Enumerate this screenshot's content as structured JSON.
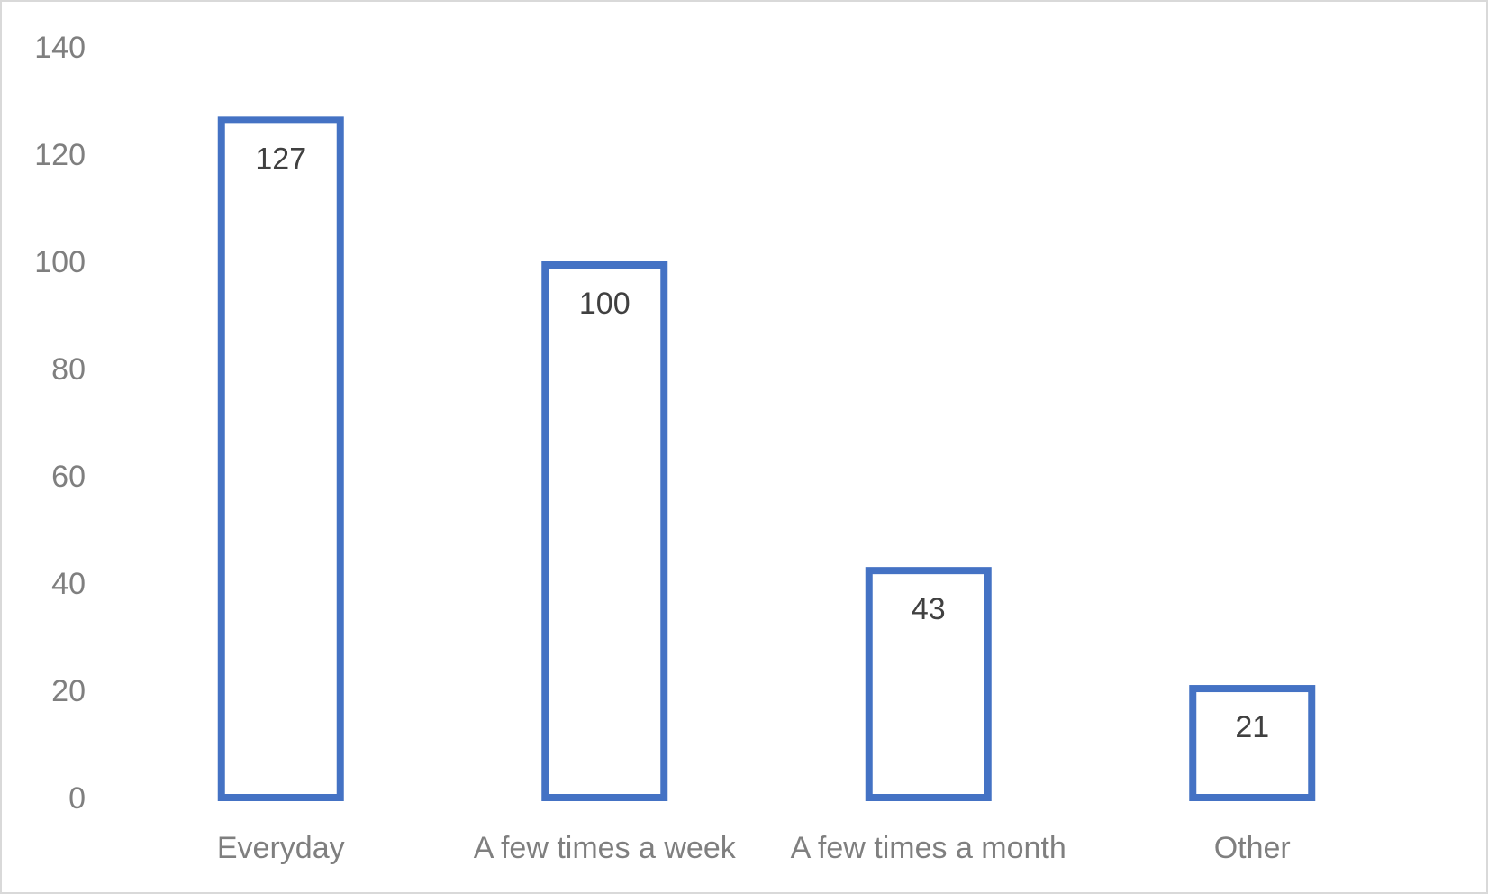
{
  "chart_data": {
    "type": "bar",
    "title": "",
    "xlabel": "",
    "ylabel": "",
    "categories": [
      "Everyday",
      "A few times a week",
      "A few times a month",
      "Other"
    ],
    "values": [
      127,
      100,
      43,
      21
    ],
    "data_labels": [
      "127",
      "100",
      "43",
      "21"
    ],
    "ylim": [
      0,
      140
    ],
    "yticks": [
      "0",
      "20",
      "40",
      "60",
      "80",
      "100",
      "120",
      "140"
    ],
    "grid": false,
    "legend": "none",
    "bar_style": "outline",
    "bar_stroke_color": "#4472c4",
    "bar_fill_color": "#ffffff"
  }
}
